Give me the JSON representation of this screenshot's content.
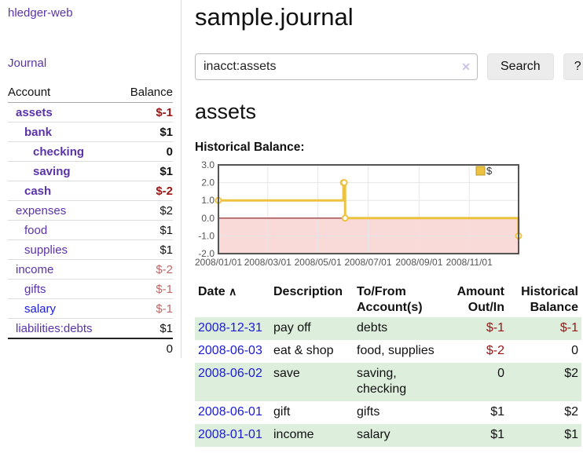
{
  "app": {
    "title": "hledger-web",
    "nav_journal": "Journal"
  },
  "sidebar": {
    "accounts": {
      "col_account": "Account",
      "col_balance": "Balance",
      "rows": [
        {
          "name": "assets",
          "balance": "$-1",
          "level": 1,
          "bold": true,
          "name_tone": "purple",
          "balance_tone": "red"
        },
        {
          "name": "bank",
          "balance": "$1",
          "level": 2,
          "bold": true,
          "name_tone": "purple",
          "balance_tone": "black"
        },
        {
          "name": "checking",
          "balance": "0",
          "level": 3,
          "bold": true,
          "name_tone": "purple",
          "balance_tone": "black"
        },
        {
          "name": "saving",
          "balance": "$1",
          "level": 3,
          "bold": true,
          "name_tone": "purple",
          "balance_tone": "black"
        },
        {
          "name": "cash",
          "balance": "$-2",
          "level": 2,
          "bold": true,
          "name_tone": "purple",
          "balance_tone": "red"
        },
        {
          "name": "expenses",
          "balance": "$2",
          "level": 1,
          "bold": false,
          "name_tone": "purple",
          "balance_tone": "black"
        },
        {
          "name": "food",
          "balance": "$1",
          "level": 2,
          "bold": false,
          "name_tone": "purple",
          "balance_tone": "black"
        },
        {
          "name": "supplies",
          "balance": "$1",
          "level": 2,
          "bold": false,
          "name_tone": "purple",
          "balance_tone": "black"
        },
        {
          "name": "income",
          "balance": "$-2",
          "level": 1,
          "bold": false,
          "name_tone": "purple",
          "balance_tone": "rose"
        },
        {
          "name": "gifts",
          "balance": "$-1",
          "level": 2,
          "bold": false,
          "name_tone": "purple",
          "balance_tone": "rose"
        },
        {
          "name": "salary",
          "balance": "$-1",
          "level": 2,
          "bold": false,
          "name_tone": "blue",
          "balance_tone": "rose"
        },
        {
          "name": "liabilities:debts",
          "balance": "$1",
          "level": 1,
          "bold": false,
          "name_tone": "purple",
          "balance_tone": "black"
        }
      ],
      "total": "0"
    }
  },
  "main": {
    "title": "sample.journal",
    "search": {
      "value": "inacct:assets",
      "clear_icon": "✕",
      "button_label": "Search",
      "help_label": "?"
    },
    "account_heading": "assets",
    "chart_heading": "Historical Balance:"
  },
  "chart_data": {
    "type": "line",
    "subtype": "step",
    "title": "Historical Balance",
    "x_range": [
      "2008-01-01",
      "2008-12-31"
    ],
    "ylim": [
      -2.0,
      3.0
    ],
    "y_ticks": [
      3.0,
      2.0,
      1.0,
      0.0,
      -1.0,
      -2.0
    ],
    "y_tick_labels": [
      "3.0",
      "2.0",
      "1.0",
      "0.0",
      "-1.0",
      "-2.0"
    ],
    "x_ticks": [
      {
        "date": "2008-01-01",
        "label": "2008/01/01"
      },
      {
        "date": "2008-03-01",
        "label": "2008/03/01"
      },
      {
        "date": "2008-05-01",
        "label": "2008/05/01"
      },
      {
        "date": "2008-07-01",
        "label": "2008/07/01"
      },
      {
        "date": "2008-09-01",
        "label": "2008/09/01"
      },
      {
        "date": "2008-11-01",
        "label": "2008/11/01"
      }
    ],
    "legend": {
      "label": "$",
      "position": "top-right"
    },
    "grid": true,
    "series": [
      {
        "name": "$",
        "color": "#edc240",
        "points": [
          {
            "date": "2008-01-01",
            "value": 1
          },
          {
            "date": "2008-06-01",
            "value": 2
          },
          {
            "date": "2008-06-02",
            "value": 2
          },
          {
            "date": "2008-06-03",
            "value": 0
          },
          {
            "date": "2008-12-31",
            "value": -1
          }
        ]
      }
    ],
    "negative_region_color": "#fad9d9",
    "zero_line_color": "#8b1a1a",
    "border_color": "#545454",
    "gridline_color": "#e6e6e6",
    "tick_label_color": "#545454"
  },
  "register": {
    "columns": {
      "date": "Date",
      "description": "Description",
      "accounts": "To/From Account(s)",
      "amount": "Amount Out/In",
      "balance": "Historical Balance"
    },
    "sort_icon": "∧",
    "rows": [
      {
        "date": "2008-12-31",
        "description": "pay off",
        "accounts": "debts",
        "amount": "$-1",
        "amount_tone": "red",
        "balance": "$-1",
        "balance_tone": "red"
      },
      {
        "date": "2008-06-03",
        "description": "eat & shop",
        "accounts": "food, supplies",
        "amount": "$-2",
        "amount_tone": "red",
        "balance": "0",
        "balance_tone": "black"
      },
      {
        "date": "2008-06-02",
        "description": "save",
        "accounts": "saving, checking",
        "amount": "0",
        "amount_tone": "black",
        "balance": "$2",
        "balance_tone": "black"
      },
      {
        "date": "2008-06-01",
        "description": "gift",
        "accounts": "gifts",
        "amount": "$1",
        "amount_tone": "black",
        "balance": "$2",
        "balance_tone": "black"
      },
      {
        "date": "2008-01-01",
        "description": "income",
        "accounts": "salary",
        "amount": "$1",
        "amount_tone": "black",
        "balance": "$1",
        "balance_tone": "black"
      }
    ]
  },
  "colors": {
    "link_purple": "#5b33a9",
    "link_blue": "#1a1ad9",
    "negative": "#9a1616",
    "negative_soft": "#c06868",
    "row_alt_green": "#ddeedd",
    "series_gold": "#edc240",
    "button_bg": "#ececec"
  }
}
